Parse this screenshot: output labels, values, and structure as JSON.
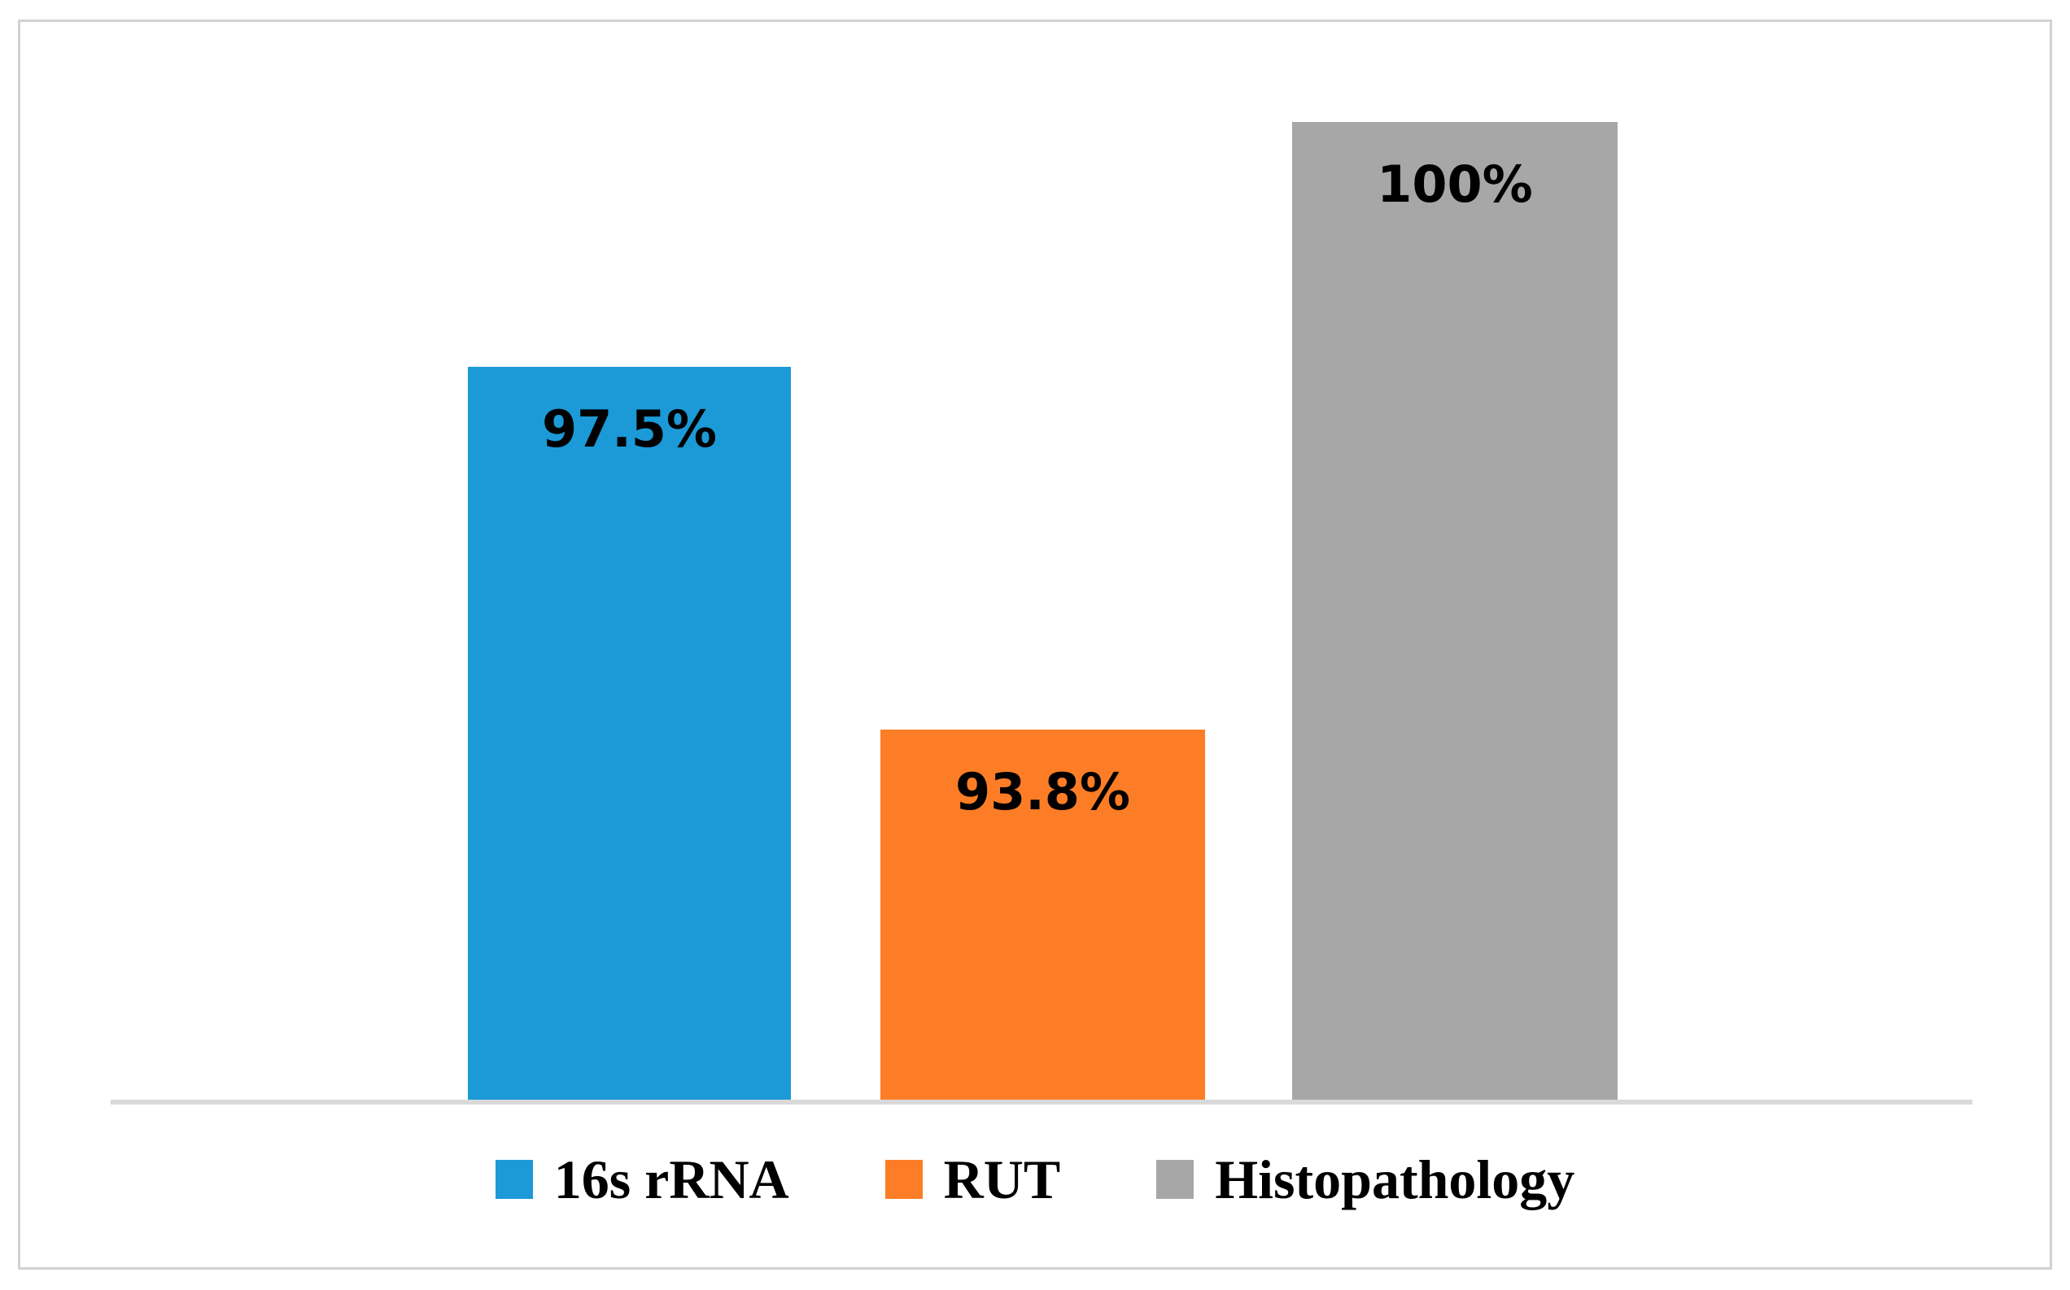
{
  "chart_data": {
    "type": "bar",
    "categories": [
      "16s rRNA",
      "RUT",
      "Histopathology"
    ],
    "values": [
      97.5,
      93.8,
      100
    ],
    "data_labels": [
      "97.5%",
      "93.8%",
      "100%"
    ],
    "colors": [
      "#1b9ad7",
      "#fd7d26",
      "#a7a7a7"
    ],
    "title": "",
    "xlabel": "",
    "ylabel": "",
    "ylim": [
      90,
      101
    ],
    "y_axis_visible": false,
    "x_tick_labels_visible": false,
    "gridlines": false,
    "legend_position": "bottom",
    "legend": [
      {
        "label": "16s rRNA",
        "color": "#1b9ad7"
      },
      {
        "label": "RUT",
        "color": "#fd7d26"
      },
      {
        "label": "Histopathology",
        "color": "#a7a7a7"
      }
    ],
    "baseline_color": "#d9d9d9",
    "frame_border_color": "#d2d2d2",
    "data_label_color": "#000000"
  }
}
